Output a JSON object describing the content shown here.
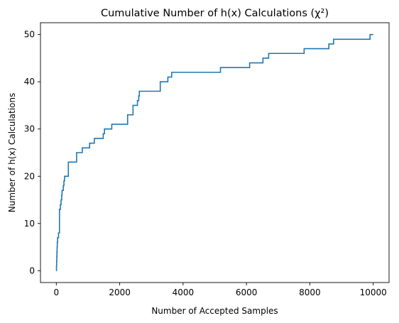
{
  "chart_data": {
    "type": "line",
    "title": "Cumulative Number of h(x) Calculations (χ²)",
    "xlabel": "Number of Accepted Samples",
    "ylabel": "Number of h(x) Calculations",
    "xlim": [
      -500,
      10500
    ],
    "ylim": [
      -2.5,
      52.5
    ],
    "x_ticks": [
      0,
      2000,
      4000,
      6000,
      8000,
      10000
    ],
    "y_ticks": [
      0,
      10,
      20,
      30,
      40,
      50
    ],
    "grid": false,
    "legend": "none",
    "series_color": "#1f77b4",
    "series": [
      {
        "x": [
          0,
          5,
          10,
          15,
          20,
          25,
          30,
          40,
          50,
          60,
          70,
          80,
          100,
          130,
          150,
          170,
          180,
          200,
          220,
          240,
          260,
          280,
          300,
          330,
          380,
          450,
          640,
          820,
          1050,
          1200,
          1480,
          1520,
          1750,
          2250,
          2330,
          2420,
          2500,
          2560,
          2600,
          2620,
          3280,
          3520,
          3640,
          5180,
          6100,
          6520,
          6700,
          7820,
          8600,
          8750,
          9900,
          10000
        ],
        "y": [
          0,
          1,
          2,
          3,
          4,
          5,
          6,
          7,
          7,
          7,
          8,
          8,
          13,
          14,
          15,
          16,
          17,
          17,
          18,
          19,
          20,
          20,
          20,
          20,
          23,
          23,
          25,
          26,
          27,
          28,
          29,
          30,
          31,
          33,
          33,
          35,
          35,
          36,
          37,
          38,
          40,
          41,
          42,
          43,
          44,
          45,
          46,
          47,
          48,
          49,
          50,
          50
        ]
      }
    ]
  }
}
